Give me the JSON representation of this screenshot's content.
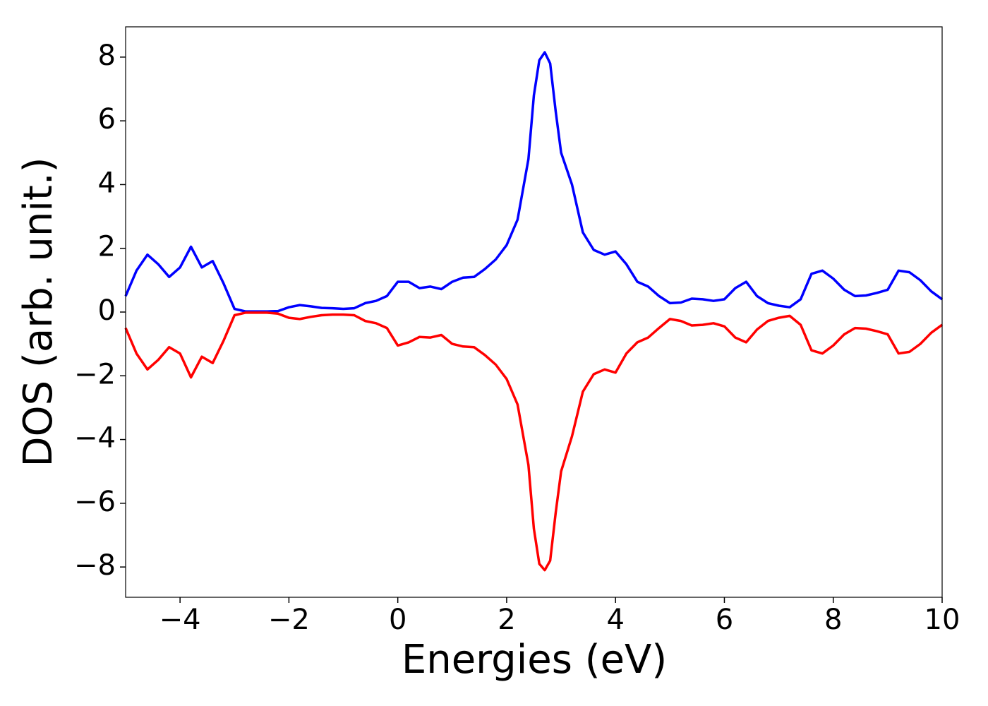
{
  "chart_data": {
    "type": "line",
    "xlabel": "Energies (eV)",
    "ylabel": "DOS (arb. unit.)",
    "x": [
      -5,
      -4.8,
      -4.6,
      -4.4,
      -4.2,
      -4,
      -3.8,
      -3.6,
      -3.4,
      -3.2,
      -3,
      -2.8,
      -2.6,
      -2.4,
      -2.2,
      -2,
      -1.8,
      -1.6,
      -1.4,
      -1.2,
      -1,
      -0.8,
      -0.6,
      -0.4,
      -0.2,
      0,
      0.2,
      0.4,
      0.6,
      0.8,
      1,
      1.2,
      1.4,
      1.6,
      1.8,
      2,
      2.2,
      2.4,
      2.5,
      2.6,
      2.7,
      2.8,
      2.9,
      3,
      3.2,
      3.4,
      3.6,
      3.8,
      4,
      4.2,
      4.4,
      4.6,
      4.8,
      5,
      5.2,
      5.4,
      5.6,
      5.8,
      6,
      6.2,
      6.4,
      6.6,
      6.8,
      7,
      7.2,
      7.4,
      7.6,
      7.8,
      8,
      8.2,
      8.4,
      8.6,
      8.8,
      9,
      9.2,
      9.4,
      9.6,
      9.8,
      10
    ],
    "series": [
      {
        "color": "#0000ff",
        "values": [
          0.5,
          1.3,
          1.8,
          1.5,
          1.1,
          1.4,
          2.05,
          1.4,
          1.6,
          0.9,
          0.1,
          0.02,
          0.02,
          0.02,
          0.03,
          0.15,
          0.22,
          0.18,
          0.13,
          0.12,
          0.1,
          0.12,
          0.28,
          0.35,
          0.5,
          0.95,
          0.95,
          0.75,
          0.8,
          0.72,
          0.95,
          1.08,
          1.1,
          1.35,
          1.65,
          2.1,
          2.9,
          4.8,
          6.8,
          7.9,
          8.15,
          7.8,
          6.3,
          5.0,
          4.0,
          2.5,
          1.95,
          1.8,
          1.9,
          1.5,
          0.95,
          0.8,
          0.5,
          0.28,
          0.3,
          0.42,
          0.4,
          0.35,
          0.4,
          0.75,
          0.95,
          0.5,
          0.28,
          0.2,
          0.15,
          0.4,
          1.2,
          1.3,
          1.05,
          0.7,
          0.5,
          0.52,
          0.6,
          0.7,
          1.3,
          1.25,
          1.0,
          0.65,
          0.4
        ]
      },
      {
        "color": "#ff0000",
        "values": [
          -0.5,
          -1.3,
          -1.8,
          -1.5,
          -1.1,
          -1.3,
          -2.05,
          -1.4,
          -1.6,
          -0.9,
          -0.1,
          -0.02,
          -0.02,
          -0.02,
          -0.05,
          -0.18,
          -0.22,
          -0.15,
          -0.1,
          -0.08,
          -0.08,
          -0.1,
          -0.28,
          -0.35,
          -0.5,
          -1.05,
          -0.95,
          -0.78,
          -0.8,
          -0.72,
          -1.0,
          -1.08,
          -1.1,
          -1.35,
          -1.65,
          -2.1,
          -2.9,
          -4.8,
          -6.8,
          -7.9,
          -8.1,
          -7.8,
          -6.3,
          -5.0,
          -3.9,
          -2.5,
          -1.95,
          -1.8,
          -1.9,
          -1.3,
          -0.95,
          -0.8,
          -0.5,
          -0.22,
          -0.28,
          -0.42,
          -0.4,
          -0.35,
          -0.45,
          -0.8,
          -0.95,
          -0.55,
          -0.28,
          -0.18,
          -0.12,
          -0.4,
          -1.2,
          -1.3,
          -1.05,
          -0.7,
          -0.5,
          -0.52,
          -0.6,
          -0.7,
          -1.3,
          -1.25,
          -1.0,
          -0.65,
          -0.4
        ]
      }
    ],
    "xlim": [
      -5,
      10
    ],
    "xticks": [
      {
        "value": -4,
        "label": "−4"
      },
      {
        "value": -2,
        "label": "−2"
      },
      0,
      2,
      4,
      6,
      8,
      10
    ],
    "ylim": [
      -8.95,
      8.95
    ],
    "yticks": [
      {
        "value": -8,
        "label": "−8"
      },
      {
        "value": -6,
        "label": "−6"
      },
      {
        "value": -4,
        "label": "−4"
      },
      {
        "value": -2,
        "label": "−2"
      },
      0,
      2,
      4,
      6,
      8
    ]
  }
}
